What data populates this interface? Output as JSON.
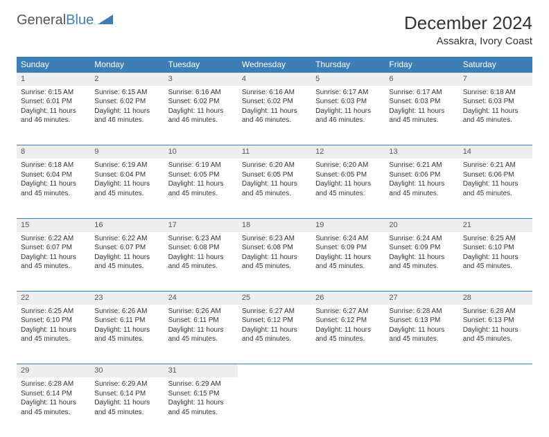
{
  "logo": {
    "text1": "General",
    "text2": "Blue"
  },
  "title": "December 2024",
  "location": "Assakra, Ivory Coast",
  "colors": {
    "header_bg": "#3c7fb8",
    "header_text": "#ffffff",
    "daynum_bg": "#eeeeee",
    "rule": "#3c7fb8",
    "text": "#333333"
  },
  "weekdays": [
    "Sunday",
    "Monday",
    "Tuesday",
    "Wednesday",
    "Thursday",
    "Friday",
    "Saturday"
  ],
  "days": [
    {
      "n": 1,
      "sr": "6:15 AM",
      "ss": "6:01 PM",
      "dl": "11 hours and 46 minutes."
    },
    {
      "n": 2,
      "sr": "6:15 AM",
      "ss": "6:02 PM",
      "dl": "11 hours and 46 minutes."
    },
    {
      "n": 3,
      "sr": "6:16 AM",
      "ss": "6:02 PM",
      "dl": "11 hours and 46 minutes."
    },
    {
      "n": 4,
      "sr": "6:16 AM",
      "ss": "6:02 PM",
      "dl": "11 hours and 46 minutes."
    },
    {
      "n": 5,
      "sr": "6:17 AM",
      "ss": "6:03 PM",
      "dl": "11 hours and 46 minutes."
    },
    {
      "n": 6,
      "sr": "6:17 AM",
      "ss": "6:03 PM",
      "dl": "11 hours and 45 minutes."
    },
    {
      "n": 7,
      "sr": "6:18 AM",
      "ss": "6:03 PM",
      "dl": "11 hours and 45 minutes."
    },
    {
      "n": 8,
      "sr": "6:18 AM",
      "ss": "6:04 PM",
      "dl": "11 hours and 45 minutes."
    },
    {
      "n": 9,
      "sr": "6:19 AM",
      "ss": "6:04 PM",
      "dl": "11 hours and 45 minutes."
    },
    {
      "n": 10,
      "sr": "6:19 AM",
      "ss": "6:05 PM",
      "dl": "11 hours and 45 minutes."
    },
    {
      "n": 11,
      "sr": "6:20 AM",
      "ss": "6:05 PM",
      "dl": "11 hours and 45 minutes."
    },
    {
      "n": 12,
      "sr": "6:20 AM",
      "ss": "6:05 PM",
      "dl": "11 hours and 45 minutes."
    },
    {
      "n": 13,
      "sr": "6:21 AM",
      "ss": "6:06 PM",
      "dl": "11 hours and 45 minutes."
    },
    {
      "n": 14,
      "sr": "6:21 AM",
      "ss": "6:06 PM",
      "dl": "11 hours and 45 minutes."
    },
    {
      "n": 15,
      "sr": "6:22 AM",
      "ss": "6:07 PM",
      "dl": "11 hours and 45 minutes."
    },
    {
      "n": 16,
      "sr": "6:22 AM",
      "ss": "6:07 PM",
      "dl": "11 hours and 45 minutes."
    },
    {
      "n": 17,
      "sr": "6:23 AM",
      "ss": "6:08 PM",
      "dl": "11 hours and 45 minutes."
    },
    {
      "n": 18,
      "sr": "6:23 AM",
      "ss": "6:08 PM",
      "dl": "11 hours and 45 minutes."
    },
    {
      "n": 19,
      "sr": "6:24 AM",
      "ss": "6:09 PM",
      "dl": "11 hours and 45 minutes."
    },
    {
      "n": 20,
      "sr": "6:24 AM",
      "ss": "6:09 PM",
      "dl": "11 hours and 45 minutes."
    },
    {
      "n": 21,
      "sr": "6:25 AM",
      "ss": "6:10 PM",
      "dl": "11 hours and 45 minutes."
    },
    {
      "n": 22,
      "sr": "6:25 AM",
      "ss": "6:10 PM",
      "dl": "11 hours and 45 minutes."
    },
    {
      "n": 23,
      "sr": "6:26 AM",
      "ss": "6:11 PM",
      "dl": "11 hours and 45 minutes."
    },
    {
      "n": 24,
      "sr": "6:26 AM",
      "ss": "6:11 PM",
      "dl": "11 hours and 45 minutes."
    },
    {
      "n": 25,
      "sr": "6:27 AM",
      "ss": "6:12 PM",
      "dl": "11 hours and 45 minutes."
    },
    {
      "n": 26,
      "sr": "6:27 AM",
      "ss": "6:12 PM",
      "dl": "11 hours and 45 minutes."
    },
    {
      "n": 27,
      "sr": "6:28 AM",
      "ss": "6:13 PM",
      "dl": "11 hours and 45 minutes."
    },
    {
      "n": 28,
      "sr": "6:28 AM",
      "ss": "6:13 PM",
      "dl": "11 hours and 45 minutes."
    },
    {
      "n": 29,
      "sr": "6:28 AM",
      "ss": "6:14 PM",
      "dl": "11 hours and 45 minutes."
    },
    {
      "n": 30,
      "sr": "6:29 AM",
      "ss": "6:14 PM",
      "dl": "11 hours and 45 minutes."
    },
    {
      "n": 31,
      "sr": "6:29 AM",
      "ss": "6:15 PM",
      "dl": "11 hours and 45 minutes."
    }
  ],
  "labels": {
    "sunrise": "Sunrise:",
    "sunset": "Sunset:",
    "daylight": "Daylight:"
  },
  "layout": {
    "start_weekday": 0,
    "columns": 7
  }
}
